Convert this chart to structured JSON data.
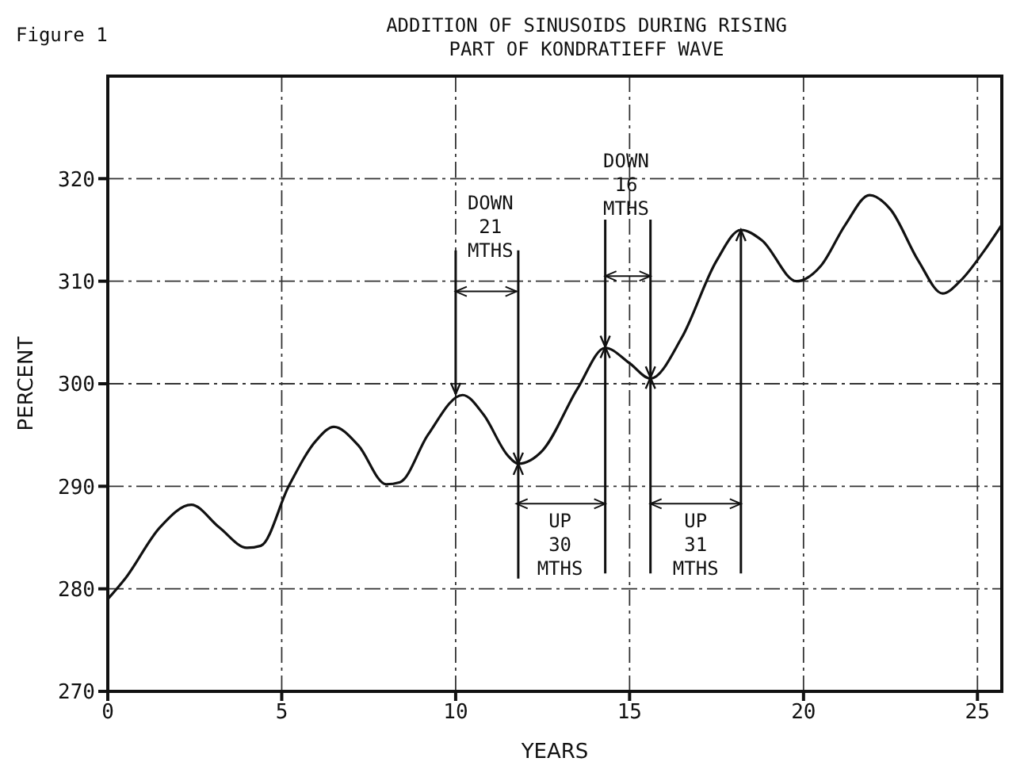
{
  "chart_data": {
    "type": "line",
    "title": "ADDITION OF SINUSOIDS DURING RISING\nPART OF KONDRATIEFF WAVE",
    "xlabel": "YEARS",
    "ylabel": "PERCENT",
    "x": [
      0,
      0.5,
      1.5,
      2.4,
      3.2,
      4.0,
      4.4,
      5.2,
      6.0,
      6.5,
      7.2,
      8.0,
      8.4,
      9.2,
      10.2,
      10.8,
      11.5,
      11.8,
      12.5,
      13.5,
      14.3,
      15.0,
      15.6,
      16.5,
      17.5,
      18.2,
      18.8,
      19.8,
      20.5,
      21.2,
      21.9,
      22.5,
      23.3,
      24.0,
      24.5,
      25.2,
      25.7
    ],
    "series": [
      {
        "color": "#111111",
        "values": [
          279,
          281,
          286,
          288.2,
          286,
          284,
          284.2,
          290,
          294.5,
          295.8,
          294,
          290.2,
          290.4,
          295,
          298.9,
          297,
          293,
          292.2,
          293.5,
          299.5,
          303.5,
          302,
          300.5,
          304.5,
          312,
          315,
          314,
          310,
          311.5,
          315.5,
          318.4,
          317,
          312,
          308.8,
          310,
          313,
          315.5
        ]
      }
    ],
    "xlim": [
      0,
      25.7
    ],
    "xticks": [
      0,
      5,
      10,
      15,
      20,
      25
    ],
    "ylim": [
      270,
      330
    ],
    "yticks": [
      270,
      280,
      290,
      300,
      310,
      320
    ],
    "grid": true,
    "annotations": [
      "Figure 1",
      {
        "text": "DOWN\n21\nMTHS",
        "x": 10,
        "y": 299
      },
      "DOWN\n16\nMTHS",
      {
        "text": "UP\n30\nMTHS",
        "x": 11.8,
        "y": 292.2
      },
      {
        "text": "UP\n31\nMTHS",
        "x": 18.2,
        "y": 315
      }
    ]
  }
}
